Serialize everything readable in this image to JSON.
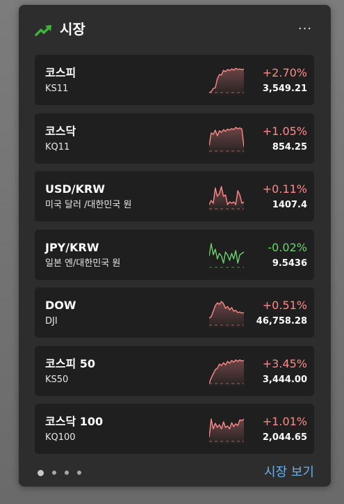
{
  "header": {
    "title": "시장",
    "icon": "trending-up-icon",
    "more_label": "···"
  },
  "colors": {
    "up": "#ff8a8a",
    "down": "#6cd36c",
    "link": "#6fb1ea",
    "card_bg": "#1f1f1f",
    "widget_bg": "#2d2d2d"
  },
  "markets": [
    {
      "name": "코스피",
      "symbol": "KS11",
      "change": "+2.70%",
      "price": "3,549.21",
      "direction": "up",
      "trend": [
        0.05,
        0.08,
        0.2,
        0.22,
        0.55,
        0.7,
        0.68,
        0.85,
        0.8,
        0.88,
        0.84,
        0.9,
        0.86,
        0.92,
        0.88,
        0.9,
        0.87,
        0.9
      ]
    },
    {
      "name": "코스닥",
      "symbol": "KQ11",
      "change": "+1.05%",
      "price": "854.25",
      "direction": "up",
      "trend": [
        0.25,
        0.7,
        0.65,
        0.8,
        0.6,
        0.78,
        0.72,
        0.82,
        0.76,
        0.84,
        0.8,
        0.86,
        0.82,
        0.9,
        0.85,
        0.88,
        0.84,
        0.2
      ]
    },
    {
      "name": "USD/KRW",
      "symbol": "미국 달러 /대한민국 원",
      "change": "+0.11%",
      "price": "1407.4",
      "direction": "up",
      "trend": [
        0.2,
        0.35,
        0.25,
        0.8,
        0.5,
        0.6,
        0.85,
        0.5,
        0.55,
        0.2,
        0.3,
        0.25,
        0.3,
        0.2,
        0.7,
        0.55,
        0.25,
        0.3
      ]
    },
    {
      "name": "JPY/KRW",
      "symbol": "일본 엔/대한민국 원",
      "change": "-0.02%",
      "price": "9.5436",
      "direction": "down",
      "trend": [
        0.45,
        0.9,
        0.5,
        0.7,
        0.35,
        0.55,
        0.45,
        0.2,
        0.6,
        0.5,
        0.3,
        0.55,
        0.35,
        0.65,
        0.2,
        0.5,
        0.55,
        0.6
      ]
    },
    {
      "name": "DOW",
      "symbol": "DJI",
      "change": "+0.51%",
      "price": "46,758.28",
      "direction": "up",
      "trend": [
        0.3,
        0.35,
        0.55,
        0.75,
        0.85,
        0.8,
        0.9,
        0.82,
        0.65,
        0.72,
        0.6,
        0.68,
        0.55,
        0.58,
        0.5,
        0.52,
        0.48,
        0.5
      ]
    },
    {
      "name": "코스피 50",
      "symbol": "KS50",
      "change": "+3.45%",
      "price": "3,444.00",
      "direction": "up",
      "trend": [
        0.05,
        0.25,
        0.4,
        0.55,
        0.6,
        0.75,
        0.7,
        0.8,
        0.72,
        0.85,
        0.78,
        0.88,
        0.82,
        0.9,
        0.85,
        0.9,
        0.86,
        0.88
      ]
    },
    {
      "name": "코스닥 100",
      "symbol": "KQ100",
      "change": "+1.01%",
      "price": "2,044.65",
      "direction": "up",
      "trend": [
        0.2,
        0.85,
        0.5,
        0.7,
        0.55,
        0.65,
        0.5,
        0.75,
        0.55,
        0.6,
        0.5,
        0.72,
        0.58,
        0.68,
        0.62,
        0.82,
        0.8,
        0.85
      ]
    }
  ],
  "footer": {
    "pages": 4,
    "active_page": 1,
    "see_more_label": "시장 보기"
  }
}
